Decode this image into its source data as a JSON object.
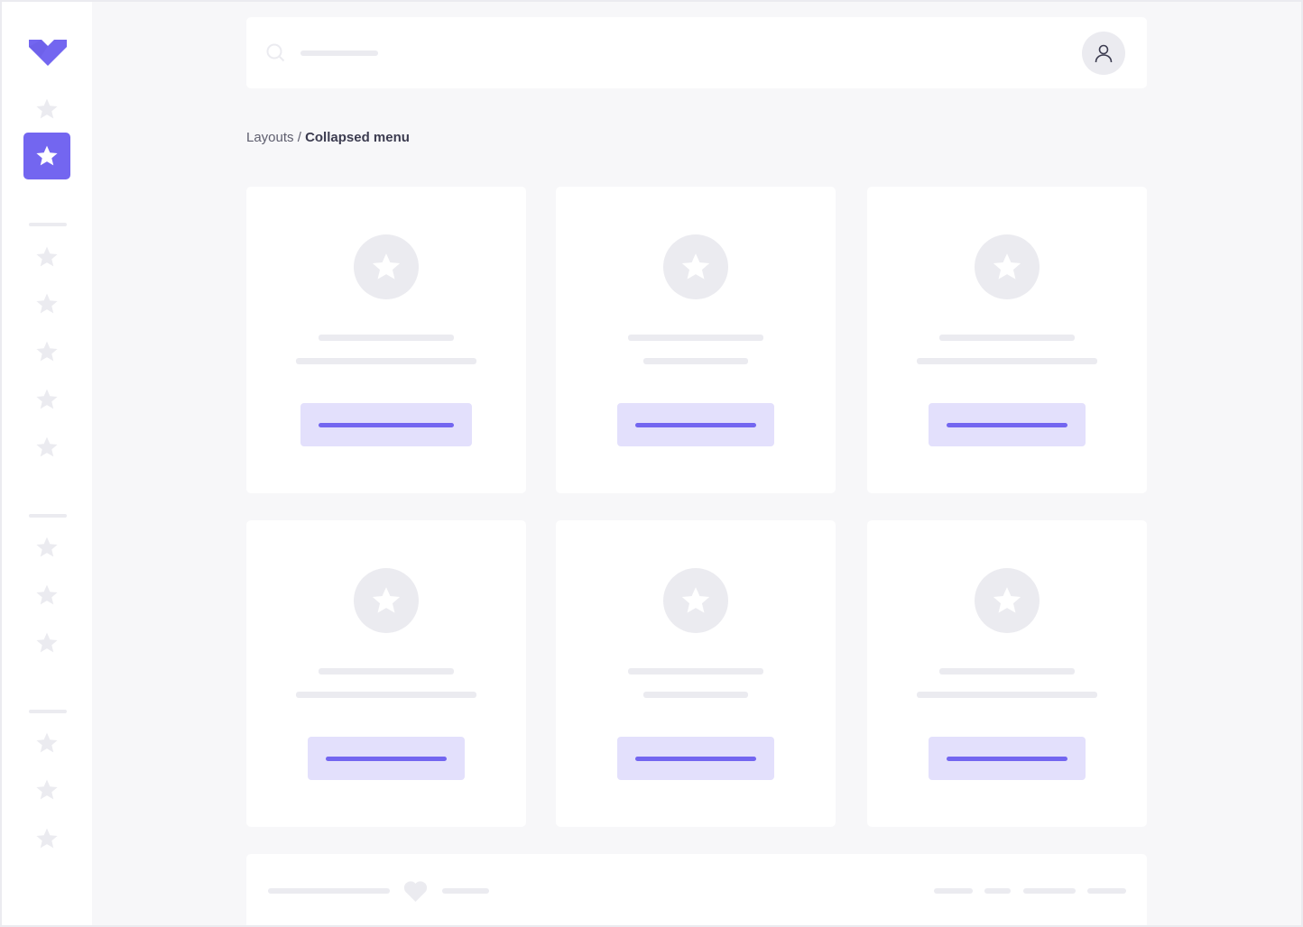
{
  "breadcrumb": {
    "parent": "Layouts",
    "separator": " / ",
    "current": "Collapsed menu"
  },
  "colors": {
    "accent": "#7366f0",
    "accent_light": "#e3e0fc",
    "placeholder": "#ebebf0",
    "background": "#f7f7f9"
  },
  "icons": {
    "logo": "logo-chevron-icon",
    "nav": "star-icon",
    "search": "search-icon",
    "user": "user-icon",
    "footer": "heart-icon"
  },
  "sidebar": {
    "active_index": 1
  },
  "cards": [
    {
      "button": "wide",
      "second_line": "long"
    },
    {
      "button": "normal",
      "second_line": "short"
    },
    {
      "button": "normal",
      "second_line": "long"
    },
    {
      "button": "normal",
      "second_line": "long"
    },
    {
      "button": "normal",
      "second_line": "short"
    },
    {
      "button": "normal",
      "second_line": "long"
    }
  ]
}
